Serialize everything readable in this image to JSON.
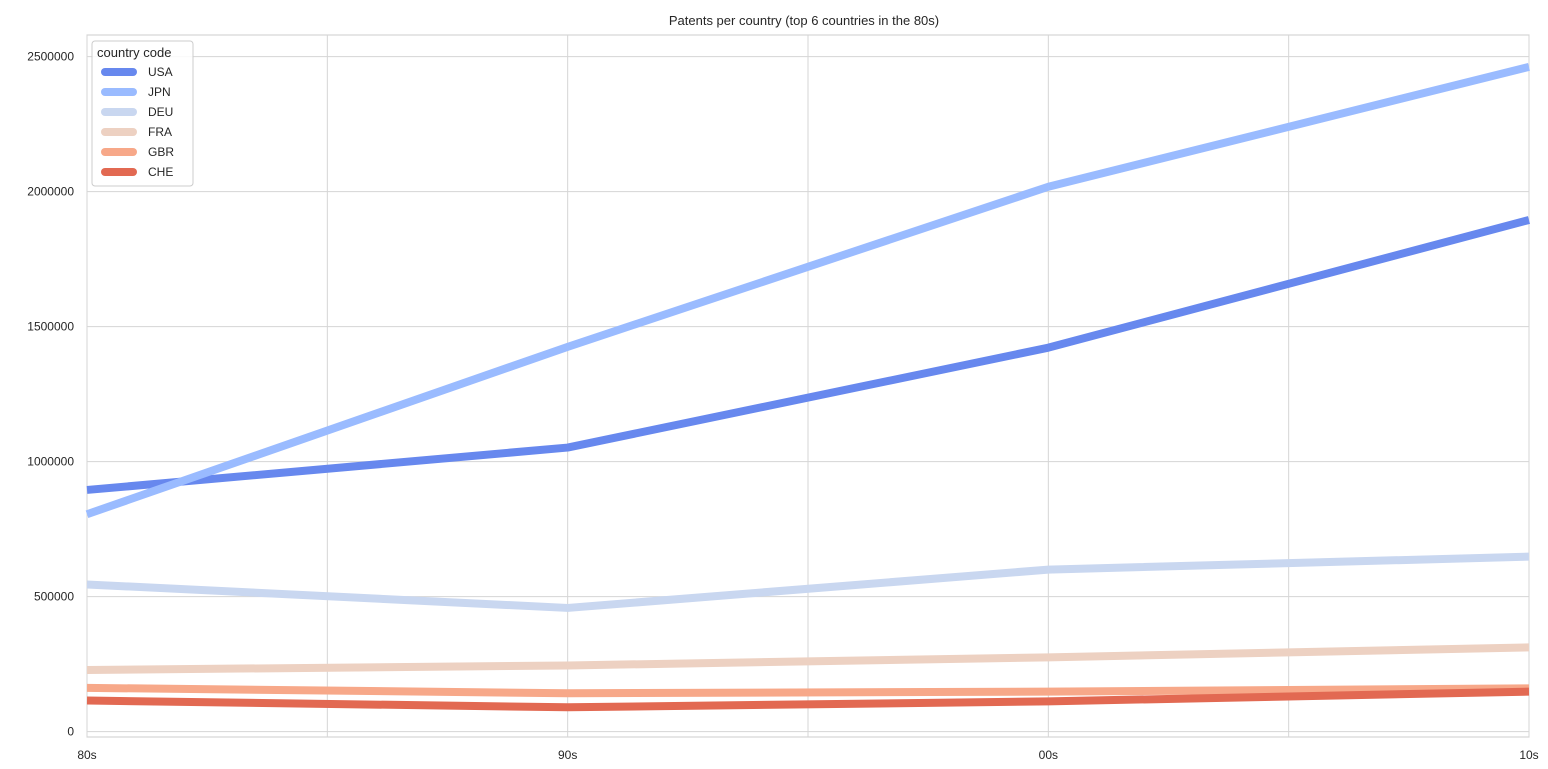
{
  "chart_data": {
    "type": "line",
    "title": "Patents per country (top 6 countries in the 80s)",
    "xlabel": "",
    "ylabel": "",
    "categories": [
      "80s",
      "90s",
      "00s",
      "10s"
    ],
    "ylim": [
      -20000,
      2580000
    ],
    "yticks": [
      0,
      500000,
      1000000,
      1500000,
      2000000,
      2500000
    ],
    "ytick_labels": [
      "0",
      "500000",
      "1000000",
      "1500000",
      "2000000",
      "2500000"
    ],
    "grid": true,
    "legend_title": "country code",
    "legend_position": "top-left",
    "series": [
      {
        "name": "USA",
        "color": "#6788ee",
        "values": [
          895000,
          1052000,
          1422000,
          1895000
        ]
      },
      {
        "name": "JPN",
        "color": "#9abbff",
        "values": [
          805000,
          1425000,
          2018000,
          2462000
        ]
      },
      {
        "name": "DEU",
        "color": "#c9d7f0",
        "values": [
          545000,
          458000,
          600000,
          648000
        ]
      },
      {
        "name": "FRA",
        "color": "#edd1c2",
        "values": [
          228000,
          245000,
          275000,
          312000
        ]
      },
      {
        "name": "GBR",
        "color": "#f7a889",
        "values": [
          162000,
          142000,
          148000,
          160000
        ]
      },
      {
        "name": "CHE",
        "color": "#e26952",
        "values": [
          115000,
          90000,
          112000,
          148000
        ]
      }
    ]
  }
}
